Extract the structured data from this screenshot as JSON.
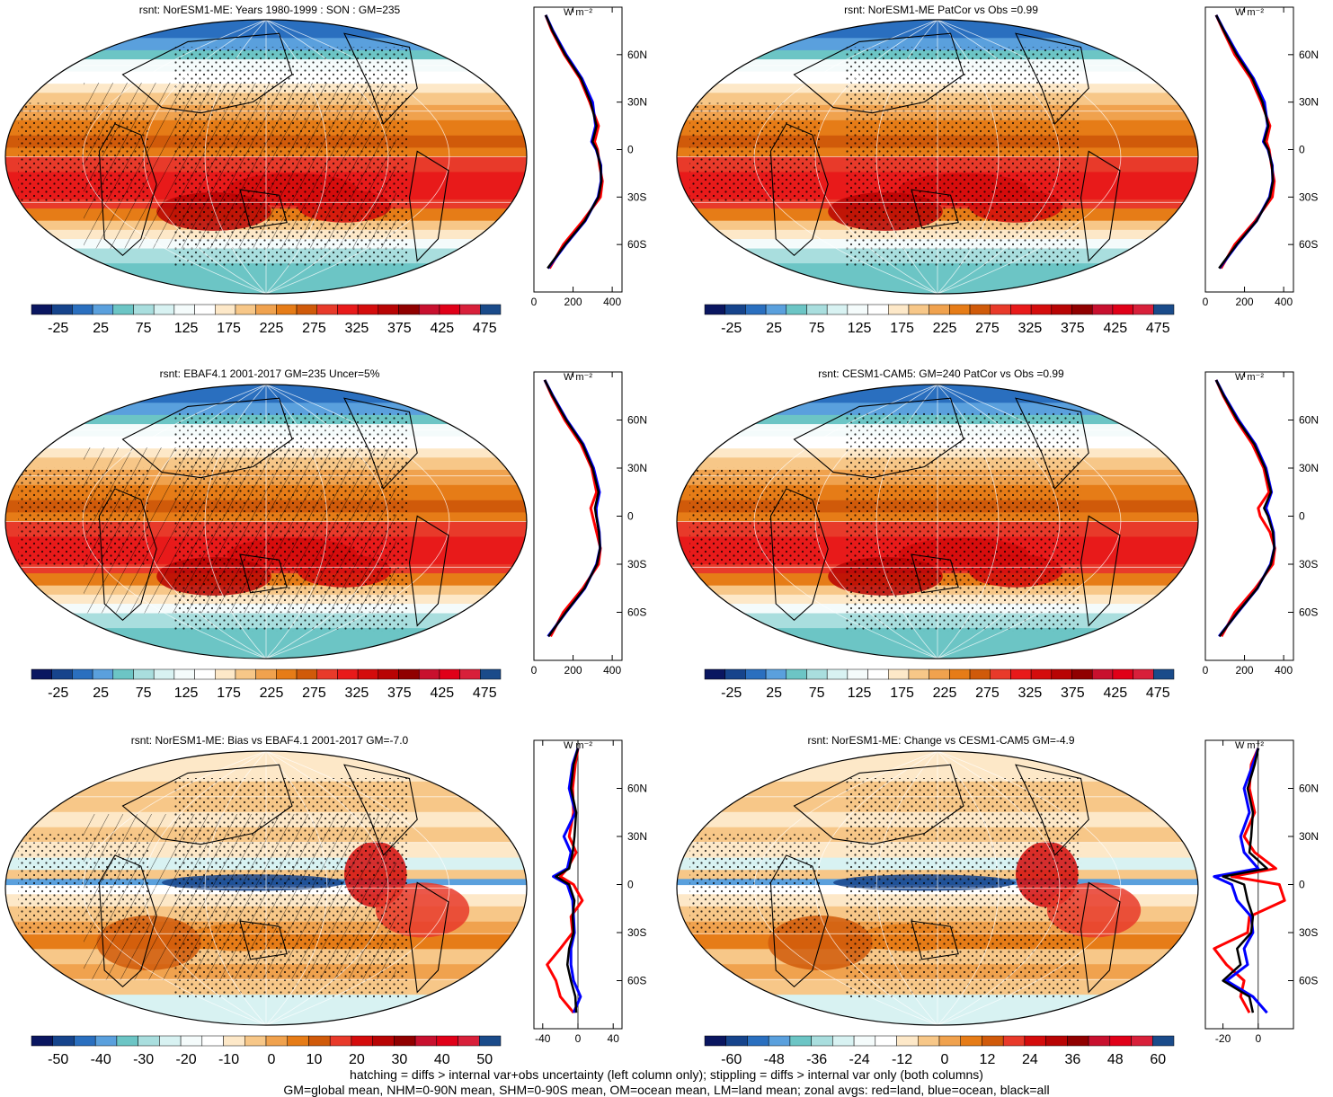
{
  "footer": {
    "line1": "hatching = diffs > internal var+obs uncertainty (left column only); stippling = diffs > internal var only (both columns)",
    "line2": "GM=global mean, NHM=0-90N mean, SHM=0-90S mean, OM=ocean mean, LM=land mean; zonal avgs: red=land, blue=ocean, black=all"
  },
  "colors": {
    "full_scale": [
      "#0a1660",
      "#16448c",
      "#2a6fbf",
      "#5aa0dd",
      "#6cc5c5",
      "#a9dede",
      "#d8f2f2",
      "#f4fbfb",
      "#ffffff",
      "#fde8c8",
      "#f7c788",
      "#f0a24e",
      "#e67c17",
      "#d05a0a",
      "#e83a2a",
      "#e81a1a",
      "#d40c0c",
      "#b80404",
      "#900000",
      "#c8102e",
      "#e00018",
      "#d8203a",
      "#1a4b8a"
    ],
    "diff_scale": [
      "#0a1660",
      "#16448c",
      "#2a6fbf",
      "#5aa0dd",
      "#6cc5c5",
      "#a9dede",
      "#d8f2f2",
      "#f4fbfb",
      "#ffffff",
      "#fde8c8",
      "#f7c788",
      "#f0a24e",
      "#e67c17",
      "#d05a0a",
      "#e83a2a",
      "#d40c0c",
      "#b80404",
      "#900000",
      "#c8102e",
      "#e00018",
      "#d8203a",
      "#1a4b8a"
    ],
    "land_line": "#ff0000",
    "ocean_line": "#0000ff",
    "all_line": "#000000"
  },
  "chart_data": [
    {
      "type": "heatmap",
      "title": "rsnt: NorESM1-ME: Years 1980-1999 : SON : GM=235",
      "colorbar_ticks": [
        "-25",
        "25",
        "75",
        "125",
        "175",
        "225",
        "275",
        "325",
        "375",
        "425",
        "475"
      ],
      "hatched": true,
      "zonal": {
        "title": "W m⁻²",
        "xlim": [
          0,
          450
        ],
        "xticks": [
          "0",
          "200",
          "400"
        ],
        "lat_ticks": [
          "60N",
          "30N",
          "0",
          "30S",
          "60S"
        ],
        "lat": [
          85,
          75,
          60,
          45,
          30,
          15,
          5,
          0,
          -10,
          -20,
          -30,
          -45,
          -60,
          -75
        ],
        "all": [
          60,
          95,
          160,
          240,
          290,
          320,
          300,
          320,
          340,
          345,
          330,
          260,
          160,
          70
        ],
        "land": [
          60,
          92,
          155,
          235,
          285,
          330,
          310,
          325,
          335,
          350,
          340,
          250,
          150,
          80
        ],
        "ocean": [
          60,
          98,
          165,
          245,
          300,
          315,
          295,
          318,
          342,
          343,
          328,
          262,
          162,
          72
        ]
      }
    },
    {
      "type": "heatmap",
      "title": "rsnt: NorESM1-ME PatCor vs Obs =0.99",
      "colorbar_ticks": [
        "-25",
        "25",
        "75",
        "125",
        "175",
        "225",
        "275",
        "325",
        "375",
        "425",
        "475"
      ],
      "hatched": false,
      "zonal": {
        "title": "W m⁻²",
        "xlim": [
          0,
          450
        ],
        "xticks": [
          "0",
          "200",
          "400"
        ],
        "lat_ticks": [
          "60N",
          "30N",
          "0",
          "30S",
          "60S"
        ],
        "lat": [
          85,
          75,
          60,
          45,
          30,
          15,
          5,
          0,
          -10,
          -20,
          -30,
          -45,
          -60,
          -75
        ],
        "all": [
          55,
          95,
          160,
          240,
          292,
          322,
          300,
          322,
          340,
          345,
          330,
          262,
          160,
          70
        ],
        "land": [
          55,
          92,
          150,
          232,
          285,
          330,
          312,
          326,
          338,
          352,
          342,
          255,
          150,
          80
        ],
        "ocean": [
          55,
          98,
          166,
          246,
          302,
          318,
          296,
          320,
          342,
          344,
          328,
          262,
          162,
          72
        ]
      }
    },
    {
      "type": "heatmap",
      "title": "rsnt: EBAF4.1 2001-2017 GM=235 Uncer=5%",
      "colorbar_ticks": [
        "-25",
        "25",
        "75",
        "125",
        "175",
        "225",
        "275",
        "325",
        "375",
        "425",
        "475"
      ],
      "hatched": true,
      "zonal": {
        "title": "W m⁻²",
        "xlim": [
          0,
          450
        ],
        "xticks": [
          "0",
          "200",
          "400"
        ],
        "lat_ticks": [
          "60N",
          "30N",
          "0",
          "30S",
          "60S"
        ],
        "lat": [
          85,
          75,
          60,
          45,
          30,
          15,
          5,
          0,
          -10,
          -20,
          -30,
          -45,
          -60,
          -75
        ],
        "all": [
          55,
          96,
          165,
          248,
          300,
          330,
          312,
          318,
          332,
          338,
          322,
          258,
          162,
          75
        ],
        "land": [
          55,
          92,
          158,
          240,
          295,
          320,
          290,
          300,
          320,
          340,
          330,
          250,
          150,
          85
        ],
        "ocean": [
          55,
          98,
          168,
          252,
          305,
          335,
          318,
          320,
          334,
          338,
          320,
          260,
          164,
          72
        ]
      }
    },
    {
      "type": "heatmap",
      "title": "rsnt: CESM1-CAM5: GM=240 PatCor vs Obs =0.99",
      "colorbar_ticks": [
        "-25",
        "25",
        "75",
        "125",
        "175",
        "225",
        "275",
        "325",
        "375",
        "425",
        "475"
      ],
      "hatched": false,
      "zonal": {
        "title": "W m⁻²",
        "xlim": [
          0,
          450
        ],
        "xticks": [
          "0",
          "200",
          "400"
        ],
        "lat_ticks": [
          "60N",
          "30N",
          "0",
          "30S",
          "60S"
        ],
        "lat": [
          85,
          75,
          60,
          45,
          30,
          15,
          5,
          0,
          -10,
          -20,
          -30,
          -45,
          -60,
          -75
        ],
        "all": [
          55,
          95,
          165,
          250,
          305,
          335,
          300,
          320,
          345,
          352,
          335,
          265,
          165,
          72
        ],
        "land": [
          55,
          92,
          158,
          240,
          298,
          325,
          270,
          280,
          330,
          355,
          345,
          255,
          150,
          82
        ],
        "ocean": [
          55,
          98,
          170,
          255,
          310,
          338,
          310,
          325,
          348,
          352,
          333,
          266,
          166,
          70
        ]
      }
    },
    {
      "type": "heatmap",
      "title": "rsnt: NorESM1-ME: Bias vs EBAF4.1 2001-2017  GM=-7.0",
      "colorbar_ticks": [
        "-50",
        "-40",
        "-30",
        "-20",
        "-10",
        "0",
        "10",
        "20",
        "30",
        "40",
        "50"
      ],
      "hatched": true,
      "zonal": {
        "title": "W m⁻²",
        "xlim": [
          -50,
          50
        ],
        "xticks": [
          "-40",
          "0",
          "40"
        ],
        "lat_ticks": [
          "60N",
          "30N",
          "0",
          "30S",
          "60S"
        ],
        "lat": [
          85,
          75,
          60,
          45,
          30,
          20,
          10,
          5,
          0,
          -10,
          -20,
          -30,
          -40,
          -50,
          -60,
          -70,
          -80
        ],
        "all": [
          0,
          -5,
          -8,
          -2,
          -4,
          -6,
          -10,
          -25,
          -10,
          -4,
          -6,
          -5,
          -10,
          -12,
          -8,
          -3,
          -2
        ],
        "land": [
          0,
          -3,
          -6,
          -5,
          -10,
          -2,
          -12,
          -20,
          -5,
          5,
          -8,
          -6,
          -20,
          -35,
          -25,
          -20,
          -5
        ],
        "ocean": [
          0,
          -6,
          -10,
          -3,
          -16,
          -8,
          -12,
          -28,
          -12,
          -6,
          -5,
          -4,
          -8,
          -8,
          -5,
          3,
          -5
        ]
      }
    },
    {
      "type": "heatmap",
      "title": "rsnt: NorESM1-ME: Change vs CESM1-CAM5 GM=-4.9",
      "colorbar_ticks": [
        "-60",
        "-48",
        "-36",
        "-24",
        "-12",
        "0",
        "12",
        "24",
        "36",
        "48",
        "60"
      ],
      "hatched": false,
      "zonal": {
        "title": "W m⁻²",
        "xlim": [
          -30,
          20
        ],
        "xticks": [
          "-20",
          "0"
        ],
        "lat_ticks": [
          "60N",
          "30N",
          "0",
          "30S",
          "60S"
        ],
        "lat": [
          85,
          75,
          60,
          45,
          30,
          20,
          10,
          5,
          0,
          -10,
          -20,
          -30,
          -40,
          -50,
          -60,
          -70,
          -80
        ],
        "all": [
          0,
          -2,
          -6,
          -3,
          -4,
          -5,
          5,
          -20,
          -8,
          -6,
          -3,
          -4,
          -12,
          -10,
          -20,
          -5,
          -3
        ],
        "land": [
          0,
          -4,
          -5,
          -2,
          -8,
          -2,
          10,
          -15,
          12,
          15,
          -5,
          -6,
          -25,
          -18,
          -8,
          -10,
          -5
        ],
        "ocean": [
          0,
          -3,
          -8,
          -5,
          -10,
          -8,
          0,
          -25,
          -15,
          -12,
          -4,
          -3,
          -8,
          -6,
          -18,
          -3,
          5
        ]
      }
    }
  ]
}
